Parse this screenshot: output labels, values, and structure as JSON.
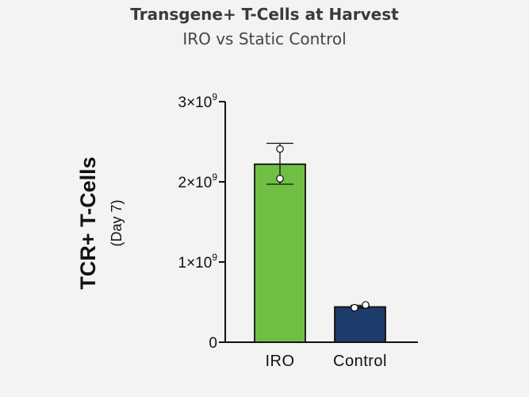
{
  "chart_data": {
    "type": "bar",
    "title": "Transgene+ T-Cells at Harvest",
    "subtitle": "IRO vs Static Control",
    "ylabel": "TCR+ T-Cells",
    "ylabel_sub": "(Day 7)",
    "categories": [
      "IRO",
      "Control"
    ],
    "values": [
      2220000000,
      440000000
    ],
    "errors": [
      {
        "low": 1970000000,
        "high": 2480000000
      },
      {
        "low": 425000000,
        "high": 460000000
      }
    ],
    "points": [
      [
        2410000000,
        2040000000
      ],
      [
        430000000,
        465000000
      ]
    ],
    "ylim": [
      0,
      3000000000
    ],
    "yticks": [
      0,
      1000000000,
      2000000000,
      3000000000
    ],
    "ytick_labels": [
      {
        "base": "0",
        "exp": ""
      },
      {
        "base": "1×10",
        "exp": "9"
      },
      {
        "base": "2×10",
        "exp": "9"
      },
      {
        "base": "3×10",
        "exp": "9"
      }
    ],
    "colors": [
      "#70bf44",
      "#1e3c6b"
    ],
    "grid": false
  }
}
